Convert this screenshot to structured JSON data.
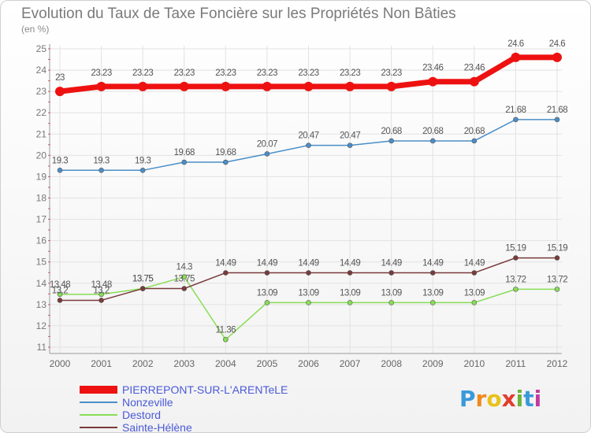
{
  "page": {
    "title": "Evolution du Taux de Taxe Foncière sur les Propriétés Non Bâties",
    "unit": "(en %)"
  },
  "logo": {
    "letters": [
      "P",
      "r",
      "o",
      "x",
      "i",
      "t",
      "i"
    ],
    "colors": [
      "#3a9ad9",
      "#f08a1c",
      "#e8c21a",
      "#e03c2c",
      "#6bb33a",
      "#3a9ad9",
      "#c03ca0"
    ]
  },
  "chart_data": {
    "type": "line",
    "title": "Evolution du Taux de Taxe Foncière sur les Propriétés Non Bâties",
    "ylabel": "(en %)",
    "xlabel": "",
    "x": [
      "2000",
      "2001",
      "2002",
      "2003",
      "2004",
      "2005",
      "2006",
      "2007",
      "2008",
      "2009",
      "2010",
      "2011",
      "2012"
    ],
    "ylim": [
      11,
      25
    ],
    "yticks": [
      "11",
      "12",
      "13",
      "14",
      "15",
      "16",
      "17",
      "18",
      "19",
      "20",
      "21",
      "22",
      "23",
      "24",
      "25"
    ],
    "grid": true,
    "legend_position": "bottom-left",
    "series": [
      {
        "name": "PIERREPONT-SUR-L'ARENTeLE",
        "color": "#ee1111",
        "width": 7,
        "marker": 6,
        "values": [
          23,
          23.23,
          23.23,
          23.23,
          23.23,
          23.23,
          23.23,
          23.23,
          23.23,
          23.46,
          23.46,
          24.6,
          24.6
        ],
        "labels": [
          "23",
          "23.23",
          "23.23",
          "23.23",
          "23.23",
          "23.23",
          "23.23",
          "23.23",
          "23.23",
          "23.46",
          "23.46",
          "24.6",
          "24.6"
        ]
      },
      {
        "name": "Nonzeville",
        "color": "#4a8ec8",
        "width": 1.5,
        "marker": 3,
        "values": [
          19.3,
          19.3,
          19.3,
          19.68,
          19.68,
          20.07,
          20.47,
          20.47,
          20.68,
          20.68,
          20.68,
          21.68,
          21.68
        ],
        "labels": [
          "19.3",
          "19.3",
          "19.3",
          "19.68",
          "19.68",
          "20.07",
          "20.47",
          "20.47",
          "20.68",
          "20.68",
          "20.68",
          "21.68",
          "21.68"
        ]
      },
      {
        "name": "Destord",
        "color": "#88dd55",
        "width": 1.5,
        "marker": 3,
        "values": [
          13.48,
          13.48,
          13.75,
          14.3,
          11.36,
          13.09,
          13.09,
          13.09,
          13.09,
          13.09,
          13.09,
          13.72,
          13.72
        ],
        "labels": [
          "13.48",
          "13.48",
          "13.75",
          "14.3",
          "11.36",
          "13.09",
          "13.09",
          "13.09",
          "13.09",
          "13.09",
          "13.09",
          "13.72",
          "13.72"
        ]
      },
      {
        "name": "Sainte-Hélène",
        "color": "#7a3a3a",
        "width": 1.5,
        "marker": 3,
        "values": [
          13.2,
          13.2,
          13.75,
          13.75,
          14.49,
          14.49,
          14.49,
          14.49,
          14.49,
          14.49,
          14.49,
          15.19,
          15.19
        ],
        "labels": [
          "13.2",
          "13.2",
          "13.75",
          "13.75",
          "14.49",
          "14.49",
          "14.49",
          "14.49",
          "14.49",
          "14.49",
          "14.49",
          "15.19",
          "15.19"
        ]
      }
    ]
  }
}
